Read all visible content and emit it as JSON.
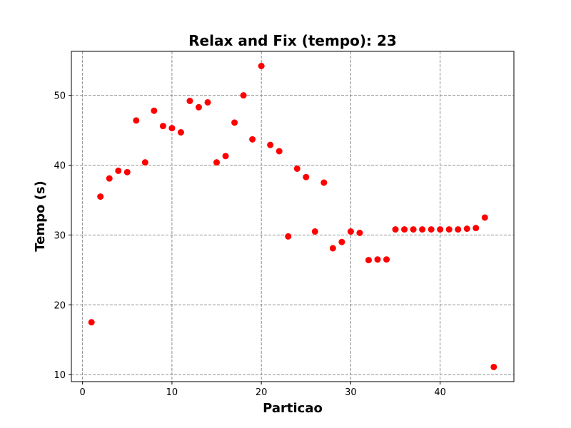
{
  "chart_data": {
    "type": "scatter",
    "title": "Relax and Fix (tempo): 23",
    "xlabel": "Particao",
    "ylabel": "Tempo (s)",
    "xlim": [
      -1.25,
      48.25
    ],
    "ylim": [
      9.0,
      56.3
    ],
    "xticks": [
      0,
      10,
      20,
      30,
      40
    ],
    "yticks": [
      10,
      20,
      30,
      40,
      50
    ],
    "grid": true,
    "marker_color": "#ff0000",
    "series": [
      {
        "x": [
          1,
          2,
          3,
          4,
          5,
          6,
          7,
          8,
          9,
          10,
          11,
          12,
          13,
          14,
          15,
          16,
          17,
          18,
          19,
          20,
          21,
          22,
          23,
          24,
          25,
          26,
          27,
          28,
          29,
          30,
          31,
          32,
          33,
          34,
          35,
          36,
          37,
          38,
          39,
          40,
          41,
          42,
          43,
          44,
          45,
          46
        ],
        "y": [
          17.5,
          35.5,
          38.1,
          39.2,
          39.0,
          46.4,
          40.4,
          47.8,
          45.6,
          45.3,
          44.7,
          49.2,
          48.3,
          49.0,
          40.4,
          41.3,
          46.1,
          50.0,
          43.7,
          54.2,
          42.9,
          42.0,
          29.8,
          39.5,
          38.3,
          30.5,
          37.5,
          28.1,
          29.0,
          30.5,
          30.3,
          26.4,
          26.5,
          26.5,
          30.8,
          30.8,
          30.8,
          30.8,
          30.8,
          30.8,
          30.8,
          30.8,
          30.9,
          31.0,
          32.5,
          11.1
        ]
      }
    ]
  }
}
